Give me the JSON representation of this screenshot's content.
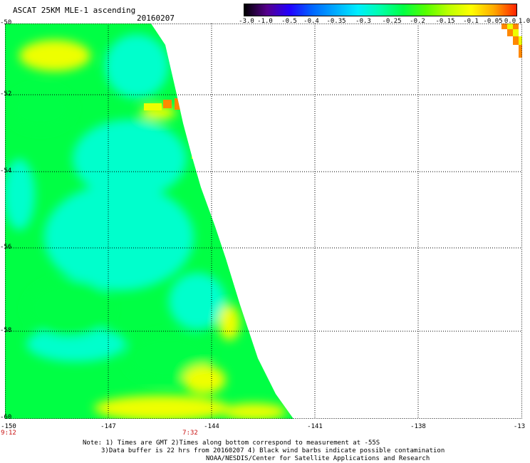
{
  "header": {
    "title": "ASCAT 25KM MLE-1 ascending",
    "date": "20160207"
  },
  "colorbar": {
    "labels": [
      "-3.0",
      "-1.0",
      "-0.5",
      "-0.4",
      "-0.35",
      "-0.3",
      "-0.25",
      "-0.2",
      "-0.15",
      "-0.1",
      "-0.05",
      "0.0",
      "1.0"
    ],
    "colors": [
      "#000000",
      "#55008c",
      "#2200ff",
      "#0066ff",
      "#00aaff",
      "#00eeff",
      "#00ffaa",
      "#00ff44",
      "#55ff00",
      "#bbff00",
      "#ffff00",
      "#ffaa00",
      "#ff2200"
    ]
  },
  "map": {
    "lat_labels": [
      "-50",
      "-52",
      "-54",
      "-56",
      "-58",
      "-60"
    ],
    "lon_labels": [
      "-150",
      "-147",
      "-144",
      "-141",
      "-138",
      "-13"
    ],
    "time_labels": [
      "9:12",
      "7:32"
    ],
    "swath_colors": {
      "dominant": "#00ff44",
      "cyan": "#00ffcc",
      "yellow": "#eeff00",
      "orange": "#ff8800",
      "blue": "#0044ff"
    }
  },
  "notes": {
    "line1": "Note: 1) Times are GMT 2)Times along bottom correspond to measurement at -55S",
    "line2": "3)Data buffer is 22 hrs from 20160207 4) Black wind barbs indicate possible contamination",
    "line3": "NOAA/NESDIS/Center for Satellite Applications and Research"
  }
}
